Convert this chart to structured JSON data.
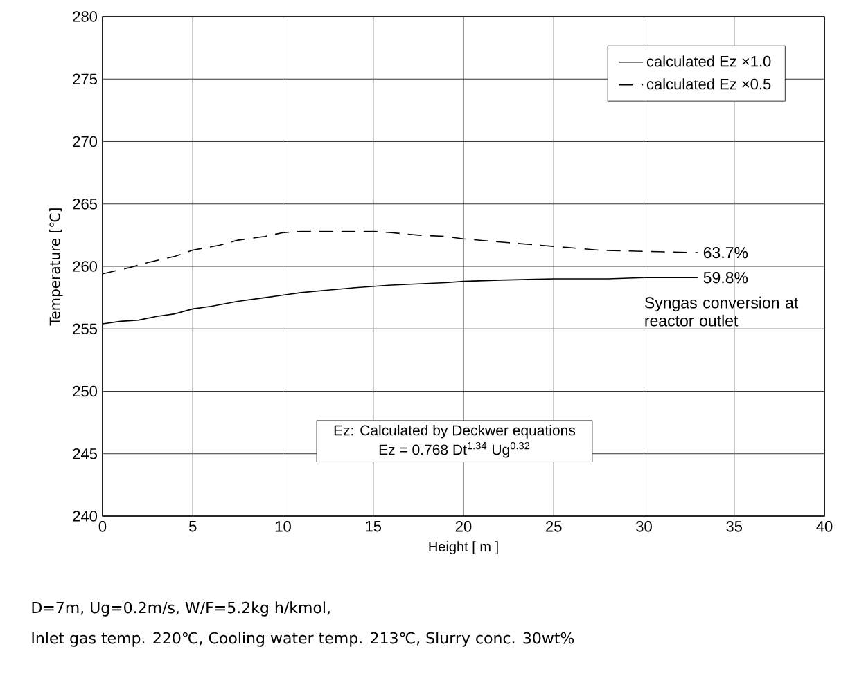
{
  "chart_data": {
    "type": "line",
    "xlabel": "Height [ m ]",
    "ylabel": "Temperature [℃]",
    "xlim": [
      0,
      40
    ],
    "ylim": [
      240,
      280
    ],
    "xticks": [
      0,
      5,
      10,
      15,
      20,
      25,
      30,
      35,
      40
    ],
    "yticks": [
      240,
      245,
      250,
      255,
      260,
      265,
      270,
      275,
      280
    ],
    "grid": true,
    "legend": "top right",
    "marker": "none",
    "series": [
      {
        "name": "calculated  Ez ×1.0",
        "color": "#000000",
        "line_style": "solid",
        "x": [
          0,
          1,
          2,
          3,
          4,
          5,
          6,
          7.5,
          9,
          10,
          11,
          12.5,
          14,
          15,
          16,
          17.5,
          19,
          20,
          22,
          25,
          28,
          30,
          33
        ],
        "values": [
          255.4,
          255.6,
          255.7,
          256.0,
          256.2,
          256.6,
          256.8,
          257.2,
          257.5,
          257.7,
          257.9,
          258.1,
          258.3,
          258.4,
          258.5,
          258.6,
          258.7,
          258.8,
          258.9,
          259.0,
          259.0,
          259.1,
          259.1
        ]
      },
      {
        "name": "calculated  Ez ×0.5",
        "color": "#000000",
        "line_style": "dashed",
        "x": [
          0,
          1.5,
          2.5,
          4,
          5,
          6.5,
          7.5,
          9,
          10,
          11,
          12.5,
          14,
          15,
          16,
          17.5,
          19,
          20,
          22.5,
          25,
          27.5,
          30,
          33
        ],
        "values": [
          259.4,
          259.9,
          260.3,
          260.8,
          261.3,
          261.7,
          262.1,
          262.4,
          262.7,
          262.8,
          262.8,
          262.8,
          262.8,
          262.7,
          262.5,
          262.4,
          262.2,
          261.9,
          261.6,
          261.3,
          261.2,
          261.1
        ]
      }
    ],
    "annotations": [
      {
        "text": "63.7%",
        "x": 33,
        "y": 261.1
      },
      {
        "text": "59.8%",
        "x": 33,
        "y": 259.1
      },
      "Syngas conversion at reactor outlet",
      "Ez: Calculated by Deckwer equations",
      "Ez = 0.768 Dt$^{1.34}$ Ug$^{0.32}$",
      "D=7m, Ug=0.2m/s, W/F=5.2kg h/kmol,",
      "Inlet gas temp. 220℃, Cooling water temp. 213℃, Slurry conc. 30wt%"
    ]
  }
}
